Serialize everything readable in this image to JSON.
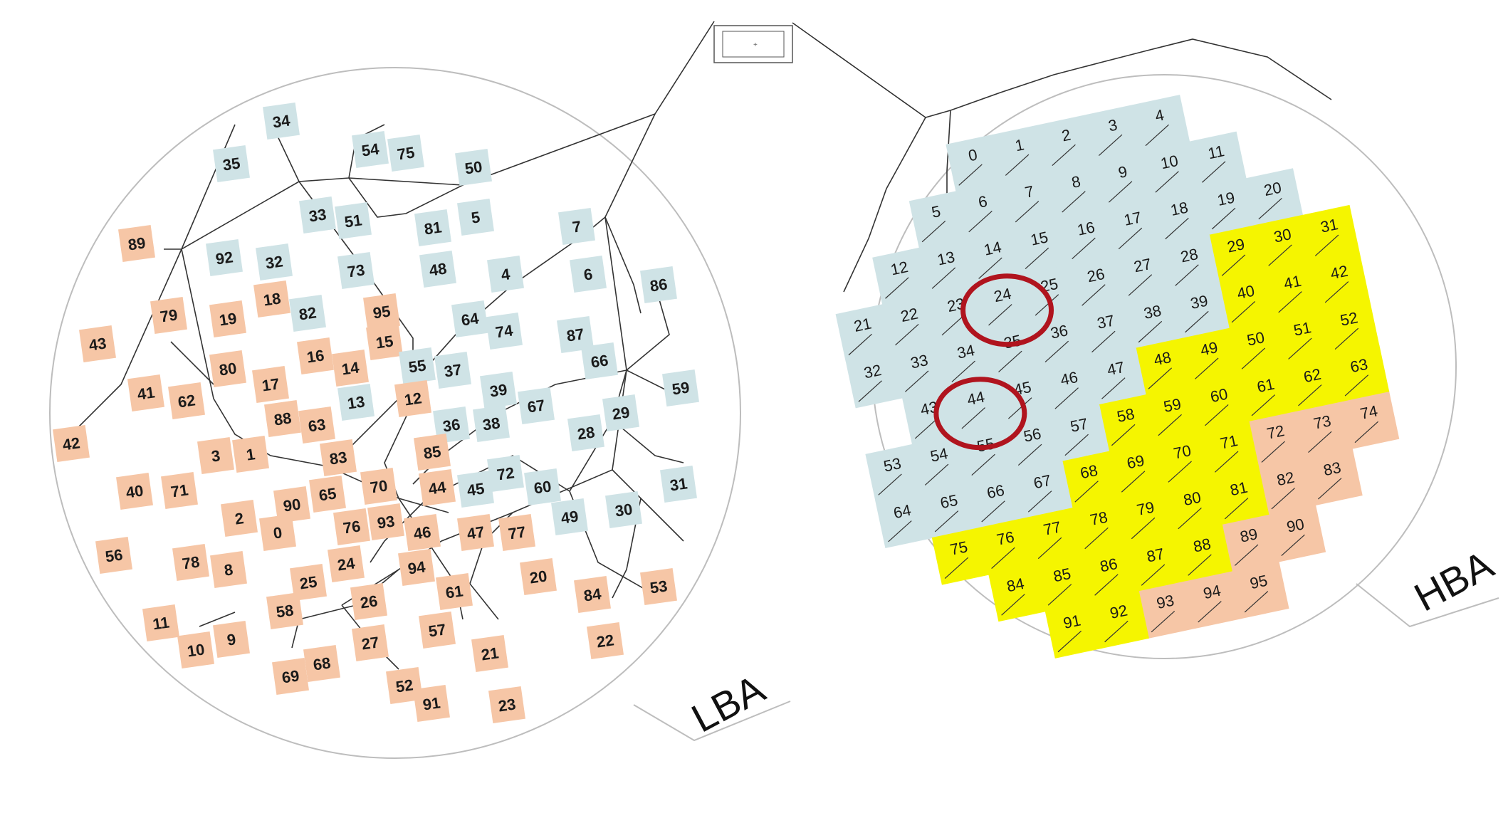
{
  "colors": {
    "blue": "#cfe3e6",
    "orange": "#f6c6a6",
    "yellow": "#f5f500",
    "line": "#3a3a3a",
    "circle": "#bdbdbd",
    "highlight": "#b0141e"
  },
  "lba": {
    "label": "LBA",
    "tiles": [
      {
        "n": "34",
        "c": "blue"
      },
      {
        "n": "35",
        "c": "blue"
      },
      {
        "n": "54",
        "c": "blue"
      },
      {
        "n": "75",
        "c": "blue"
      },
      {
        "n": "50",
        "c": "blue"
      },
      {
        "n": "89",
        "c": "orange"
      },
      {
        "n": "92",
        "c": "blue"
      },
      {
        "n": "33",
        "c": "blue"
      },
      {
        "n": "51",
        "c": "blue"
      },
      {
        "n": "81",
        "c": "blue"
      },
      {
        "n": "5",
        "c": "blue"
      },
      {
        "n": "7",
        "c": "blue"
      },
      {
        "n": "32",
        "c": "blue"
      },
      {
        "n": "73",
        "c": "blue"
      },
      {
        "n": "48",
        "c": "blue"
      },
      {
        "n": "4",
        "c": "blue"
      },
      {
        "n": "6",
        "c": "blue"
      },
      {
        "n": "86",
        "c": "blue"
      },
      {
        "n": "79",
        "c": "orange"
      },
      {
        "n": "19",
        "c": "orange"
      },
      {
        "n": "18",
        "c": "orange"
      },
      {
        "n": "82",
        "c": "blue"
      },
      {
        "n": "95",
        "c": "orange"
      },
      {
        "n": "64",
        "c": "blue"
      },
      {
        "n": "74",
        "c": "blue"
      },
      {
        "n": "87",
        "c": "blue"
      },
      {
        "n": "43",
        "c": "orange"
      },
      {
        "n": "16",
        "c": "orange"
      },
      {
        "n": "15",
        "c": "orange"
      },
      {
        "n": "14",
        "c": "orange"
      },
      {
        "n": "55",
        "c": "blue"
      },
      {
        "n": "37",
        "c": "blue"
      },
      {
        "n": "66",
        "c": "blue"
      },
      {
        "n": "41",
        "c": "orange"
      },
      {
        "n": "80",
        "c": "orange"
      },
      {
        "n": "62",
        "c": "orange"
      },
      {
        "n": "17",
        "c": "orange"
      },
      {
        "n": "13",
        "c": "blue"
      },
      {
        "n": "12",
        "c": "orange"
      },
      {
        "n": "39",
        "c": "blue"
      },
      {
        "n": "59",
        "c": "blue"
      },
      {
        "n": "88",
        "c": "orange"
      },
      {
        "n": "63",
        "c": "orange"
      },
      {
        "n": "36",
        "c": "blue"
      },
      {
        "n": "38",
        "c": "blue"
      },
      {
        "n": "67",
        "c": "blue"
      },
      {
        "n": "28",
        "c": "blue"
      },
      {
        "n": "29",
        "c": "blue"
      },
      {
        "n": "42",
        "c": "orange"
      },
      {
        "n": "3",
        "c": "orange"
      },
      {
        "n": "1",
        "c": "orange"
      },
      {
        "n": "83",
        "c": "orange"
      },
      {
        "n": "85",
        "c": "orange"
      },
      {
        "n": "72",
        "c": "blue"
      },
      {
        "n": "40",
        "c": "orange"
      },
      {
        "n": "71",
        "c": "orange"
      },
      {
        "n": "90",
        "c": "orange"
      },
      {
        "n": "65",
        "c": "orange"
      },
      {
        "n": "70",
        "c": "orange"
      },
      {
        "n": "44",
        "c": "orange"
      },
      {
        "n": "45",
        "c": "blue"
      },
      {
        "n": "60",
        "c": "blue"
      },
      {
        "n": "31",
        "c": "blue"
      },
      {
        "n": "2",
        "c": "orange"
      },
      {
        "n": "0",
        "c": "orange"
      },
      {
        "n": "76",
        "c": "orange"
      },
      {
        "n": "93",
        "c": "orange"
      },
      {
        "n": "46",
        "c": "orange"
      },
      {
        "n": "47",
        "c": "orange"
      },
      {
        "n": "77",
        "c": "orange"
      },
      {
        "n": "49",
        "c": "blue"
      },
      {
        "n": "30",
        "c": "blue"
      },
      {
        "n": "56",
        "c": "orange"
      },
      {
        "n": "78",
        "c": "orange"
      },
      {
        "n": "8",
        "c": "orange"
      },
      {
        "n": "24",
        "c": "orange"
      },
      {
        "n": "25",
        "c": "orange"
      },
      {
        "n": "94",
        "c": "orange"
      },
      {
        "n": "20",
        "c": "orange"
      },
      {
        "n": "58",
        "c": "orange"
      },
      {
        "n": "26",
        "c": "orange"
      },
      {
        "n": "61",
        "c": "orange"
      },
      {
        "n": "84",
        "c": "orange"
      },
      {
        "n": "53",
        "c": "orange"
      },
      {
        "n": "11",
        "c": "orange"
      },
      {
        "n": "9",
        "c": "orange"
      },
      {
        "n": "10",
        "c": "orange"
      },
      {
        "n": "27",
        "c": "orange"
      },
      {
        "n": "57",
        "c": "orange"
      },
      {
        "n": "22",
        "c": "orange"
      },
      {
        "n": "69",
        "c": "orange"
      },
      {
        "n": "68",
        "c": "orange"
      },
      {
        "n": "21",
        "c": "orange"
      },
      {
        "n": "52",
        "c": "orange"
      },
      {
        "n": "91",
        "c": "orange"
      },
      {
        "n": "23",
        "c": "orange"
      }
    ],
    "nodes": [
      "1",
      "2",
      "3",
      "4",
      "5",
      "6",
      "8",
      "9",
      "10",
      "11",
      "12",
      "13",
      "14",
      "15",
      "16",
      "17",
      "18",
      "19",
      "20",
      "21",
      "22",
      "23",
      "24",
      "25",
      "26",
      "27",
      "28",
      "29",
      "30",
      "31",
      "32",
      "33",
      "34",
      "35",
      "36",
      "37",
      "38",
      "39",
      "40",
      "41",
      "42",
      "43",
      "44",
      "45",
      "46",
      "47",
      "48",
      "49",
      "50",
      "51",
      "52",
      "53",
      "54",
      "55",
      "56",
      "57",
      "58",
      "59",
      "60",
      "61",
      "62",
      "63",
      "64",
      "65",
      "66",
      "67",
      "68",
      "69",
      "101"
    ]
  },
  "hba": {
    "label": "HBA",
    "tiles": [
      {
        "n": "4",
        "c": "blue"
      },
      {
        "n": "3",
        "c": "blue"
      },
      {
        "n": "2",
        "c": "blue"
      },
      {
        "n": "1",
        "c": "blue"
      },
      {
        "n": "0",
        "c": "blue"
      },
      {
        "n": "11",
        "c": "blue"
      },
      {
        "n": "10",
        "c": "blue"
      },
      {
        "n": "9",
        "c": "blue"
      },
      {
        "n": "8",
        "c": "blue"
      },
      {
        "n": "7",
        "c": "blue"
      },
      {
        "n": "6",
        "c": "blue"
      },
      {
        "n": "5",
        "c": "blue"
      },
      {
        "n": "20",
        "c": "blue"
      },
      {
        "n": "19",
        "c": "blue"
      },
      {
        "n": "18",
        "c": "blue"
      },
      {
        "n": "17",
        "c": "blue"
      },
      {
        "n": "16",
        "c": "blue"
      },
      {
        "n": "15",
        "c": "blue"
      },
      {
        "n": "14",
        "c": "blue"
      },
      {
        "n": "13",
        "c": "blue"
      },
      {
        "n": "12",
        "c": "blue"
      },
      {
        "n": "31",
        "c": "yellow"
      },
      {
        "n": "30",
        "c": "yellow"
      },
      {
        "n": "29",
        "c": "yellow"
      },
      {
        "n": "28",
        "c": "blue"
      },
      {
        "n": "27",
        "c": "blue"
      },
      {
        "n": "26",
        "c": "blue"
      },
      {
        "n": "25",
        "c": "blue"
      },
      {
        "n": "24",
        "c": "blue"
      },
      {
        "n": "23",
        "c": "blue"
      },
      {
        "n": "22",
        "c": "blue"
      },
      {
        "n": "21",
        "c": "blue"
      },
      {
        "n": "42",
        "c": "yellow"
      },
      {
        "n": "41",
        "c": "yellow"
      },
      {
        "n": "40",
        "c": "yellow"
      },
      {
        "n": "39",
        "c": "blue"
      },
      {
        "n": "38",
        "c": "blue"
      },
      {
        "n": "37",
        "c": "blue"
      },
      {
        "n": "36",
        "c": "blue"
      },
      {
        "n": "35",
        "c": "blue"
      },
      {
        "n": "34",
        "c": "blue"
      },
      {
        "n": "33",
        "c": "blue"
      },
      {
        "n": "32",
        "c": "blue"
      },
      {
        "n": "52",
        "c": "yellow"
      },
      {
        "n": "51",
        "c": "yellow"
      },
      {
        "n": "50",
        "c": "yellow"
      },
      {
        "n": "49",
        "c": "yellow"
      },
      {
        "n": "48",
        "c": "yellow"
      },
      {
        "n": "47",
        "c": "blue"
      },
      {
        "n": "46",
        "c": "blue"
      },
      {
        "n": "45",
        "c": "blue"
      },
      {
        "n": "44",
        "c": "blue"
      },
      {
        "n": "43",
        "c": "blue"
      },
      {
        "n": "63",
        "c": "yellow"
      },
      {
        "n": "62",
        "c": "yellow"
      },
      {
        "n": "61",
        "c": "yellow"
      },
      {
        "n": "60",
        "c": "yellow"
      },
      {
        "n": "59",
        "c": "yellow"
      },
      {
        "n": "58",
        "c": "yellow"
      },
      {
        "n": "57",
        "c": "blue"
      },
      {
        "n": "56",
        "c": "blue"
      },
      {
        "n": "55",
        "c": "blue"
      },
      {
        "n": "54",
        "c": "blue"
      },
      {
        "n": "53",
        "c": "blue"
      },
      {
        "n": "74",
        "c": "orange"
      },
      {
        "n": "73",
        "c": "orange"
      },
      {
        "n": "72",
        "c": "orange"
      },
      {
        "n": "71",
        "c": "yellow"
      },
      {
        "n": "70",
        "c": "yellow"
      },
      {
        "n": "69",
        "c": "yellow"
      },
      {
        "n": "68",
        "c": "yellow"
      },
      {
        "n": "67",
        "c": "blue"
      },
      {
        "n": "66",
        "c": "blue"
      },
      {
        "n": "65",
        "c": "blue"
      },
      {
        "n": "64",
        "c": "blue"
      },
      {
        "n": "83",
        "c": "orange"
      },
      {
        "n": "82",
        "c": "orange"
      },
      {
        "n": "81",
        "c": "yellow"
      },
      {
        "n": "80",
        "c": "yellow"
      },
      {
        "n": "79",
        "c": "yellow"
      },
      {
        "n": "78",
        "c": "yellow"
      },
      {
        "n": "77",
        "c": "yellow"
      },
      {
        "n": "76",
        "c": "yellow"
      },
      {
        "n": "75",
        "c": "yellow"
      },
      {
        "n": "90",
        "c": "orange"
      },
      {
        "n": "89",
        "c": "orange"
      },
      {
        "n": "88",
        "c": "yellow"
      },
      {
        "n": "87",
        "c": "yellow"
      },
      {
        "n": "86",
        "c": "yellow"
      },
      {
        "n": "85",
        "c": "yellow"
      },
      {
        "n": "84",
        "c": "yellow"
      },
      {
        "n": "95",
        "c": "orange"
      },
      {
        "n": "94",
        "c": "orange"
      },
      {
        "n": "93",
        "c": "orange"
      },
      {
        "n": "92",
        "c": "yellow"
      },
      {
        "n": "91",
        "c": "yellow"
      }
    ],
    "nodes": [
      "102",
      "103",
      "109",
      "117",
      "127",
      "130",
      "151",
      "162",
      "174",
      "186",
      "196",
      "204",
      "105",
      "106",
      "107",
      "108",
      "110",
      "111",
      "112",
      "113",
      "114",
      "115",
      "116",
      "118",
      "119",
      "120",
      "121",
      "122",
      "123",
      "124",
      "125",
      "126",
      "128",
      "129",
      "131",
      "132",
      "133",
      "134",
      "135",
      "136",
      "137",
      "138",
      "140",
      "141",
      "142",
      "143",
      "144",
      "145",
      "146",
      "147",
      "148",
      "149",
      "150",
      "152",
      "153",
      "154",
      "155",
      "156",
      "157",
      "158",
      "159",
      "160",
      "161",
      "163",
      "164",
      "165",
      "166",
      "167",
      "168",
      "169",
      "170",
      "171",
      "172",
      "173",
      "175",
      "176",
      "177",
      "178",
      "179",
      "180",
      "181",
      "182",
      "183",
      "184",
      "185",
      "187",
      "188",
      "189",
      "190",
      "191",
      "192",
      "193",
      "194",
      "195",
      "197",
      "198",
      "199",
      "200",
      "201",
      "202",
      "203",
      "205",
      "206",
      "207",
      "208",
      "209"
    ],
    "highlights": [
      "24",
      "44"
    ]
  }
}
